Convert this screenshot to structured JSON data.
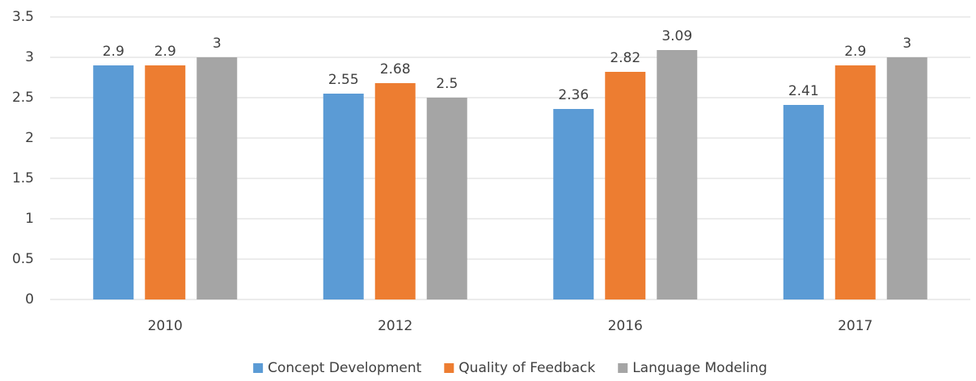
{
  "chart_data": {
    "type": "bar",
    "categories": [
      "2010",
      "2012",
      "2016",
      "2017"
    ],
    "series": [
      {
        "name": "Concept Development",
        "color": "#5b9bd5",
        "values": [
          2.9,
          2.55,
          2.36,
          2.41
        ]
      },
      {
        "name": "Quality of Feedback",
        "color": "#ed7d31",
        "values": [
          2.9,
          2.68,
          2.82,
          2.9
        ]
      },
      {
        "name": "Language Modeling",
        "color": "#a5a5a5",
        "values": [
          3,
          2.5,
          3.09,
          3
        ]
      }
    ],
    "ylim": [
      0,
      3.5
    ],
    "yticks": [
      0,
      0.5,
      1,
      1.5,
      2,
      2.5,
      3,
      3.5
    ],
    "grid": true,
    "legend": "bottom"
  }
}
